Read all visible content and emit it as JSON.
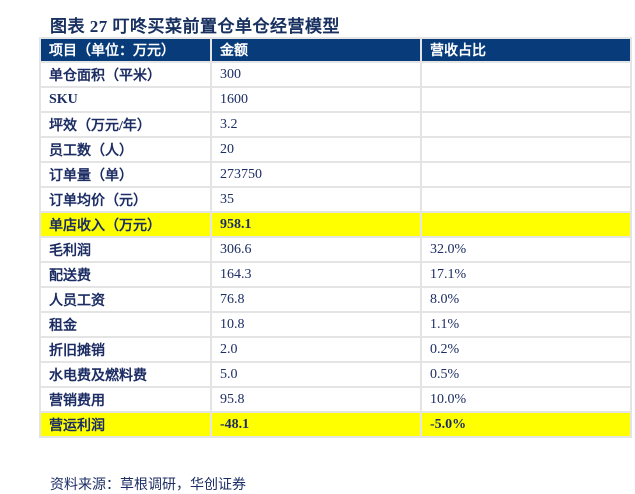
{
  "title": "图表 27 叮咚买菜前置仓单仓经营模型",
  "columns": [
    "项目（单位：万元）",
    "金额",
    "营收占比"
  ],
  "rows": [
    {
      "item": "单仓面积（平米）",
      "amount": "300",
      "share": "",
      "highlight": false
    },
    {
      "item": "SKU",
      "amount": "1600",
      "share": "",
      "highlight": false
    },
    {
      "item": "坪效（万元/年）",
      "amount": "3.2",
      "share": "",
      "highlight": false
    },
    {
      "item": "员工数（人）",
      "amount": "20",
      "share": "",
      "highlight": false
    },
    {
      "item": "订单量（单）",
      "amount": "273750",
      "share": "",
      "highlight": false
    },
    {
      "item": "订单均价（元）",
      "amount": "35",
      "share": "",
      "highlight": false
    },
    {
      "item": "单店收入（万元）",
      "amount": "958.1",
      "share": "",
      "highlight": true
    },
    {
      "item": "毛利润",
      "amount": "306.6",
      "share": "32.0%",
      "highlight": false
    },
    {
      "item": "配送费",
      "amount": "164.3",
      "share": "17.1%",
      "highlight": false
    },
    {
      "item": "人员工资",
      "amount": "76.8",
      "share": "8.0%",
      "highlight": false
    },
    {
      "item": "租金",
      "amount": "10.8",
      "share": "1.1%",
      "highlight": false
    },
    {
      "item": "折旧摊销",
      "amount": "2.0",
      "share": "0.2%",
      "highlight": false
    },
    {
      "item": "水电费及燃料费",
      "amount": "5.0",
      "share": "0.5%",
      "highlight": false
    },
    {
      "item": "营销费用",
      "amount": "95.8",
      "share": "10.0%",
      "highlight": false
    },
    {
      "item": "营运利润",
      "amount": "-48.1",
      "share": "-5.0%",
      "highlight": true
    }
  ],
  "highlight_color": "#ffff00",
  "header_color": "#073b7a",
  "source": "资料来源：草根调研，华创证券"
}
